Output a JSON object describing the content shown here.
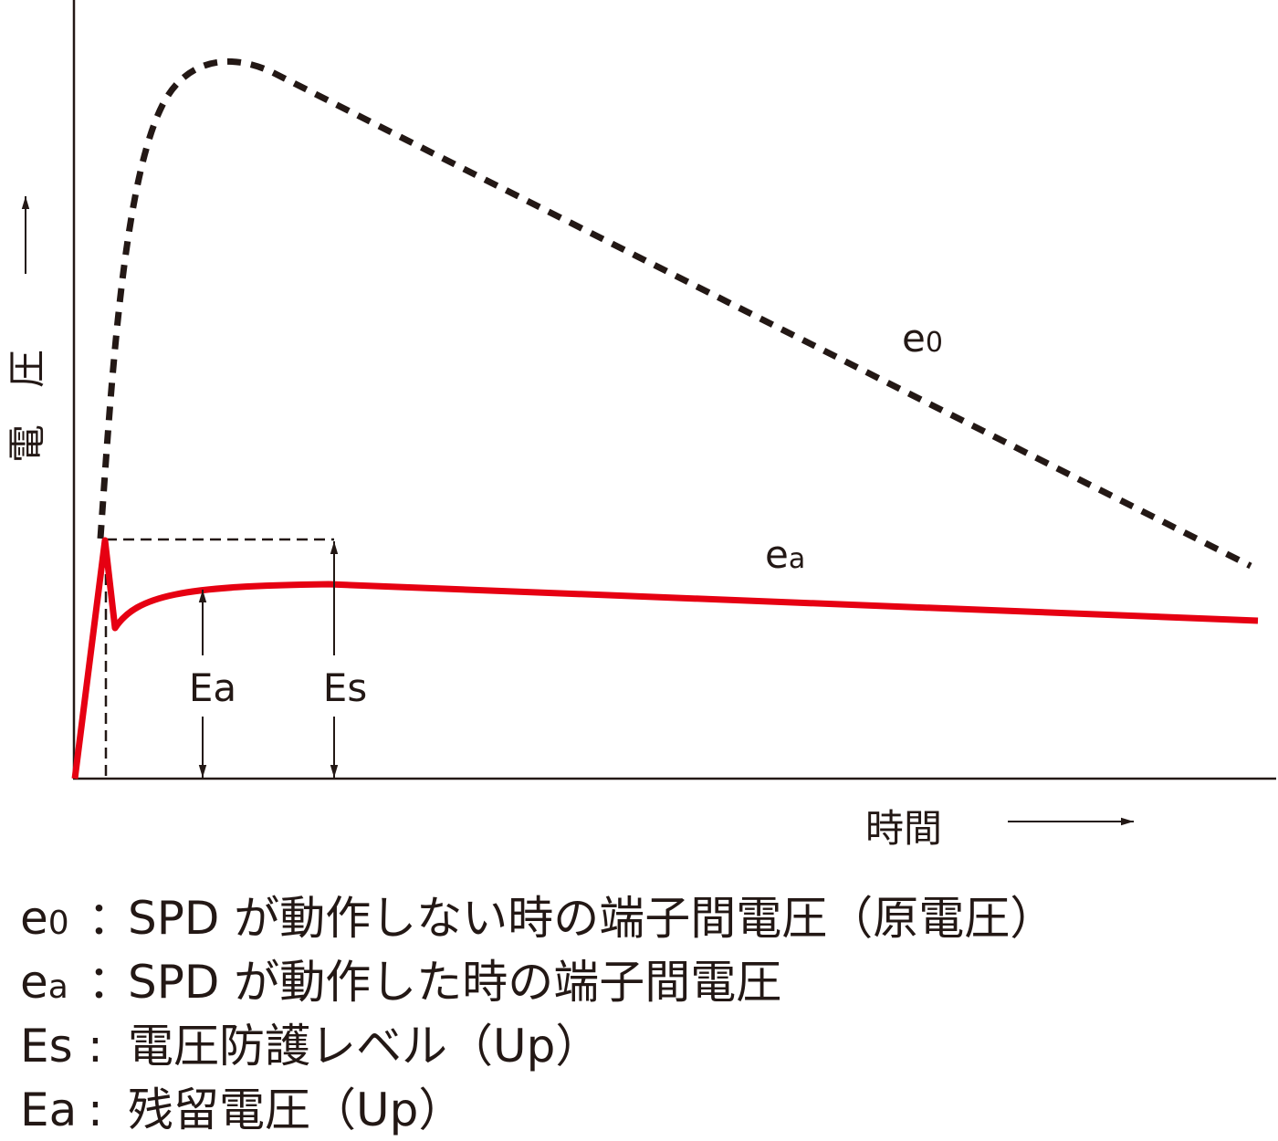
{
  "axis_labels": {
    "y": "電圧",
    "x": "時間"
  },
  "curve_labels": [
    {
      "base": "e",
      "sub": "0"
    },
    {
      "base": "e",
      "sub": "a"
    }
  ],
  "level_labels": [
    "Ea",
    "Es"
  ],
  "legend": [
    {
      "base": "e",
      "sub": "0",
      "separator": "：",
      "text": "SPD が動作しない時の端子間電圧（原電圧）"
    },
    {
      "base": "e",
      "sub": "a",
      "separator": "：",
      "text": "SPD が動作した時の端子間電圧"
    },
    {
      "base": "Es",
      "separator": ":",
      "text": "電圧防護レベル（Up）"
    },
    {
      "base": "Ea",
      "separator": ":",
      "text": "残留電圧（Up）"
    }
  ]
}
